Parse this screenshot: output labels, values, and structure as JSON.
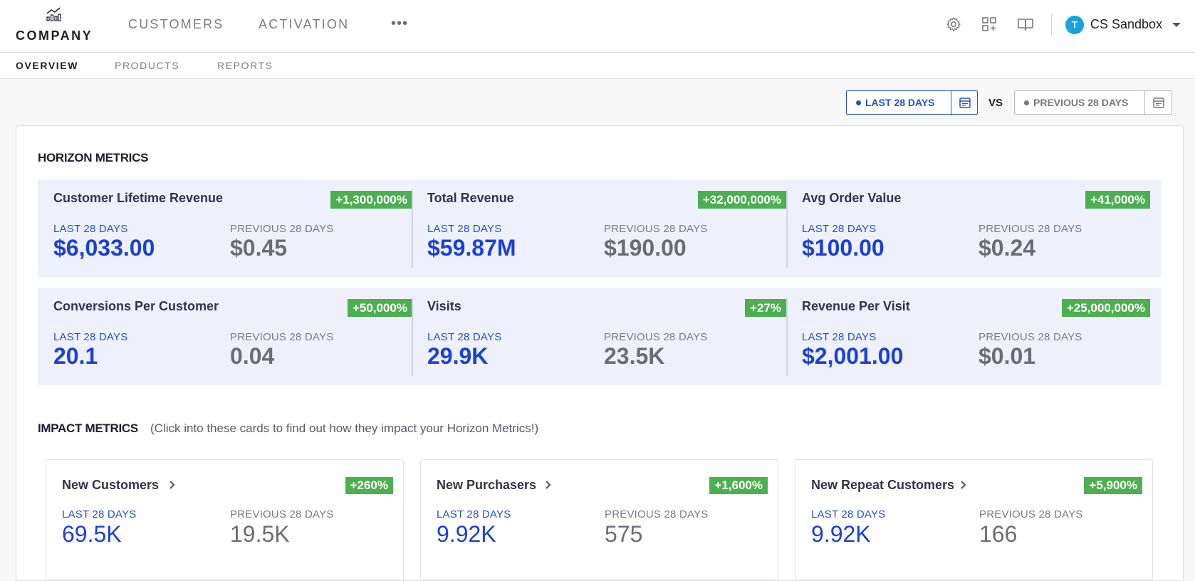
{
  "brand": {
    "name": "COMPANY",
    "logo_icon": "bar-chart-trend-icon"
  },
  "nav": {
    "items": [
      {
        "label": "CUSTOMERS"
      },
      {
        "label": "ACTIVATION"
      }
    ],
    "more_label": "•••"
  },
  "toolbar": {
    "icons": [
      "gear-icon",
      "add-widget-icon",
      "book-icon"
    ]
  },
  "account": {
    "avatar_letter": "T",
    "name": "CS Sandbox",
    "avatar_color": "#1aa2dc"
  },
  "subnav": {
    "tabs": [
      {
        "label": "OVERVIEW",
        "active": true
      },
      {
        "label": "PRODUCTS",
        "active": false
      },
      {
        "label": "REPORTS",
        "active": false
      }
    ]
  },
  "date_range": {
    "primary": "LAST 28 DAYS",
    "vs": "VS",
    "secondary": "PREVIOUS 28 DAYS"
  },
  "horizon": {
    "title": "HORIZON METRICS",
    "rows": [
      [
        {
          "name": "Customer Lifetime Revenue",
          "change": "+1,300,000%",
          "current_label": "LAST 28 DAYS",
          "current": "$6,033.00",
          "previous_label": "PREVIOUS 28 DAYS",
          "previous": "$0.45"
        },
        {
          "name": "Total Revenue",
          "change": "+32,000,000%",
          "current_label": "LAST 28 DAYS",
          "current": "$59.87M",
          "previous_label": "PREVIOUS 28 DAYS",
          "previous": "$190.00"
        },
        {
          "name": "Avg Order Value",
          "change": "+41,000%",
          "current_label": "LAST 28 DAYS",
          "current": "$100.00",
          "previous_label": "PREVIOUS 28 DAYS",
          "previous": "$0.24"
        }
      ],
      [
        {
          "name": "Conversions Per Customer",
          "change": "+50,000%",
          "current_label": "LAST 28 DAYS",
          "current": "20.1",
          "previous_label": "PREVIOUS 28 DAYS",
          "previous": "0.04"
        },
        {
          "name": "Visits",
          "change": "+27%",
          "current_label": "LAST 28 DAYS",
          "current": "29.9K",
          "previous_label": "PREVIOUS 28 DAYS",
          "previous": "23.5K"
        },
        {
          "name": "Revenue Per Visit",
          "change": "+25,000,000%",
          "current_label": "LAST 28 DAYS",
          "current": "$2,001.00",
          "previous_label": "PREVIOUS 28 DAYS",
          "previous": "$0.01"
        }
      ]
    ]
  },
  "impact": {
    "title": "IMPACT METRICS",
    "note": "(Click into these cards to find out how they impact your Horizon Metrics!)",
    "cards": [
      {
        "name": "New Customers",
        "change": "+260%",
        "current_label": "LAST 28 DAYS",
        "current": "69.5K",
        "previous_label": "PREVIOUS 28 DAYS",
        "previous": "19.5K"
      },
      {
        "name": "New Purchasers",
        "change": "+1,600%",
        "current_label": "LAST 28 DAYS",
        "current": "9.92K",
        "previous_label": "PREVIOUS 28 DAYS",
        "previous": "575"
      },
      {
        "name": "New Repeat Customers",
        "change": "+5,900%",
        "current_label": "LAST 28 DAYS",
        "current": "9.92K",
        "previous_label": "PREVIOUS 28 DAYS",
        "previous": "166"
      }
    ]
  },
  "colors": {
    "accent_blue": "#2450c8",
    "positive_badge": "#4caf50",
    "metric_row_bg": "#eef1fc"
  }
}
